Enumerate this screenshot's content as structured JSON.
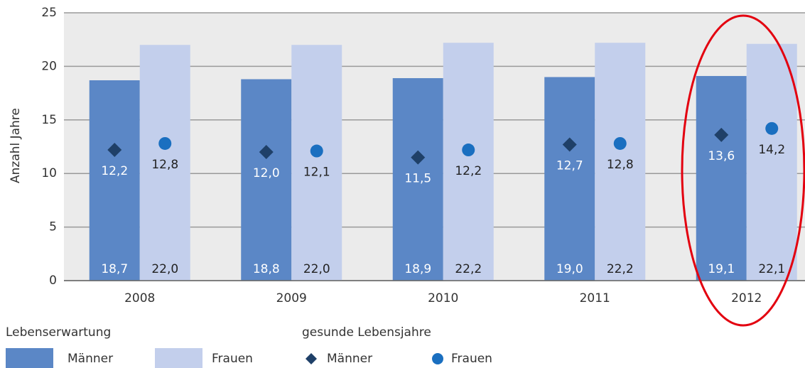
{
  "chart_data": {
    "type": "bar",
    "ylabel": "Anzahl Jahre",
    "categories": [
      "2008",
      "2009",
      "2010",
      "2011",
      "2012"
    ],
    "ylim": [
      0,
      25
    ],
    "yticks": [
      0,
      5,
      10,
      15,
      20,
      25
    ],
    "grid": true,
    "series": [
      {
        "name": "Männer",
        "group": "Lebenserwartung",
        "mark": "bar",
        "color": "#5b87c6",
        "values": [
          18.7,
          18.8,
          18.9,
          19.0,
          19.1
        ],
        "value_labels": [
          "18,7",
          "18,8",
          "18,9",
          "19,0",
          "19,1"
        ]
      },
      {
        "name": "Frauen",
        "group": "Lebenserwartung",
        "mark": "bar",
        "color": "#c3cfec",
        "values": [
          22.0,
          22.0,
          22.2,
          22.2,
          22.1
        ],
        "value_labels": [
          "22,0",
          "22,0",
          "22,2",
          "22,2",
          "22,1"
        ]
      },
      {
        "name": "Männer",
        "group": "gesunde Lebensjahre",
        "mark": "diamond",
        "color": "#1f4068",
        "values": [
          12.2,
          12.0,
          11.5,
          12.7,
          13.6
        ],
        "value_labels": [
          "12,2",
          "12,0",
          "11,5",
          "12,7",
          "13,6"
        ]
      },
      {
        "name": "Frauen",
        "group": "gesunde Lebensjahre",
        "mark": "circle",
        "color": "#1a6fc0",
        "values": [
          12.8,
          12.1,
          12.2,
          12.8,
          14.2
        ],
        "value_labels": [
          "12,8",
          "12,1",
          "12,2",
          "12,8",
          "14,2"
        ]
      }
    ]
  }
}
